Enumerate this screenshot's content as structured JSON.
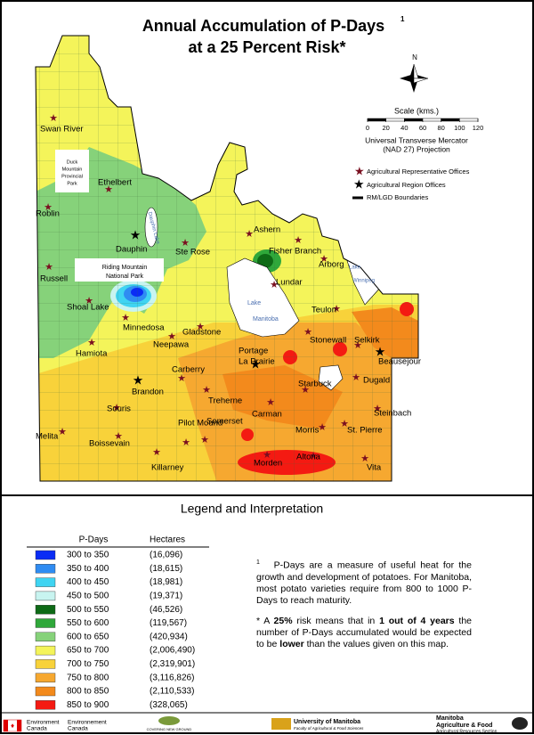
{
  "title": {
    "line1": "Annual Accumulation of P-Days",
    "footnote_mark": "1",
    "line2": "at a 25 Percent Risk*"
  },
  "north": "N",
  "scale": {
    "title": "Scale (kms.)",
    "ticks": [
      0,
      20,
      40,
      60,
      80,
      100,
      120
    ],
    "projection": [
      "Universal Transverse Mercator",
      "(NAD 27) Projection"
    ]
  },
  "map_legend": [
    "Agricultural Representative Offices",
    "Agricultural Region Offices",
    "RM/LGD Boundaries"
  ],
  "features": {
    "duck_mountain": [
      "Duck",
      "Mountain",
      "Provincial",
      "Park"
    ],
    "riding_mountain": [
      "Riding Mountain",
      "National Park"
    ],
    "dauphin_lake": "Dauphin Lake",
    "lake_manitoba": [
      "Lake",
      "Manitoba"
    ],
    "lake_winnipeg": [
      "Lake",
      "Winnipeg"
    ]
  },
  "places": [
    "Swan River",
    "Ethelbert",
    "Roblin",
    "Dauphin",
    "Ste Rose",
    "Ashern",
    "Fisher Branch",
    "Arborg",
    "Russell",
    "Lundar",
    "Shoal Lake",
    "Minnedosa",
    "Gladstone",
    "Neepawa",
    "Teulon",
    "Stonewall",
    "Selkirk",
    "Hamiota",
    "Portage",
    "La Prairie",
    "Beausejour",
    "Carberry",
    "Dugald",
    "Brandon",
    "Starbuck",
    "Treherne",
    "Souris",
    "Steinbach",
    "Carman",
    "Somerset",
    "Morris",
    "St. Pierre",
    "Melita",
    "Boissevain",
    "Pilot Mound",
    "Morden",
    "Altona",
    "Killarney",
    "Vita"
  ],
  "legend": {
    "title": "Legend and Interpretation",
    "columns": [
      "P-Days",
      "Hectares"
    ],
    "rows": [
      {
        "range": "300 to 350",
        "hectares": "(16,096)",
        "color": "#0a2cf5"
      },
      {
        "range": "350 to 400",
        "hectares": "(18,615)",
        "color": "#2f8cf2"
      },
      {
        "range": "400 to 450",
        "hectares": "(18,981)",
        "color": "#3fd4f2"
      },
      {
        "range": "450 to 500",
        "hectares": "(19,371)",
        "color": "#c8f4f0"
      },
      {
        "range": "500 to 550",
        "hectares": "(46,526)",
        "color": "#0e6a16"
      },
      {
        "range": "550 to 600",
        "hectares": "(119,567)",
        "color": "#2fa83a"
      },
      {
        "range": "600 to 650",
        "hectares": "(420,934)",
        "color": "#86d27a"
      },
      {
        "range": "650 to 700",
        "hectares": "(2,006,490)",
        "color": "#f4f45a"
      },
      {
        "range": "700 to 750",
        "hectares": "(2,319,901)",
        "color": "#f8d23a"
      },
      {
        "range": "750 to 800",
        "hectares": "(3,116,826)",
        "color": "#f6a830"
      },
      {
        "range": "800 to 850",
        "hectares": "(2,110,533)",
        "color": "#f38a1c"
      },
      {
        "range": "850 to 900",
        "hectares": "(328,065)",
        "color": "#f41a12"
      }
    ]
  },
  "note": {
    "mark": "1",
    "paragraph1": "P-Days are a measure of useful heat for the growth and development of potatoes. For Manitoba, most potato varieties require from 800 to 1000 P-Days to reach maturity.",
    "paragraph2": [
      {
        "text": "* A ",
        "bold": false
      },
      {
        "text": "25%",
        "bold": true
      },
      {
        "text": " risk means that in ",
        "bold": false
      },
      {
        "text": "1 out of 4 years",
        "bold": true
      },
      {
        "text": " the number of P-Days accumulated would be expected to be ",
        "bold": false
      },
      {
        "text": "lower",
        "bold": true
      },
      {
        "text": " than the values given on this map.",
        "bold": false
      }
    ]
  },
  "footer": {
    "env_en": [
      "Environment",
      "Canada"
    ],
    "env_fr": [
      "Environnement",
      "Canada"
    ],
    "cng": "COVERING NEW GROUND",
    "um": "University of Manitoba",
    "um_sub": "Faculty of Agricultural & Food Sciences",
    "maf": [
      "Manitoba",
      "Agriculture & Food"
    ],
    "maf_sub": "Agricultural Resources Section"
  }
}
